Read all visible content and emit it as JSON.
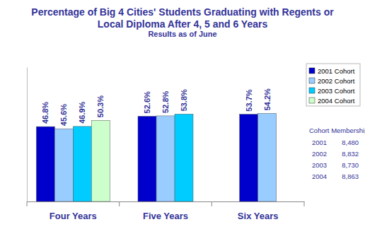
{
  "chart_data": {
    "type": "bar",
    "title": "Percentage of Big 4 Cities' Students Graduating with Regents or Local Diploma After 4, 5 and 6 Years",
    "subtitle": "Results as of June",
    "categories": [
      "Four Years",
      "Five Years",
      "Six Years"
    ],
    "series": [
      {
        "name": "2001 Cohort",
        "color": "#0000cc",
        "values": [
          46.8,
          52.6,
          53.7
        ],
        "value_labels": [
          "46.8%",
          "52.6%",
          "53.7%"
        ]
      },
      {
        "name": "2002 Cohort",
        "color": "#99ccff",
        "values": [
          45.6,
          52.8,
          54.2
        ],
        "value_labels": [
          "45.6%",
          "52.8%",
          "54.2%"
        ]
      },
      {
        "name": "2003 Cohort",
        "color": "#00ccff",
        "values": [
          46.9,
          53.8,
          null
        ],
        "value_labels": [
          "46.9%",
          "53.8%",
          null
        ]
      },
      {
        "name": "2004 Cohort",
        "color": "#ccffcc",
        "values": [
          50.3,
          null,
          null
        ],
        "value_labels": [
          "50.3%",
          null,
          null
        ]
      }
    ],
    "ylim": [
      5,
      80
    ],
    "data_labels": true,
    "tick_labels": "x",
    "legend": "right",
    "cohort_membership": {
      "title": "Cohort Membership",
      "rows": [
        [
          "2001",
          "8,480"
        ],
        [
          "2002",
          "8,832"
        ],
        [
          "2003",
          "8,730"
        ],
        [
          "2004",
          "8,863"
        ]
      ]
    }
  }
}
